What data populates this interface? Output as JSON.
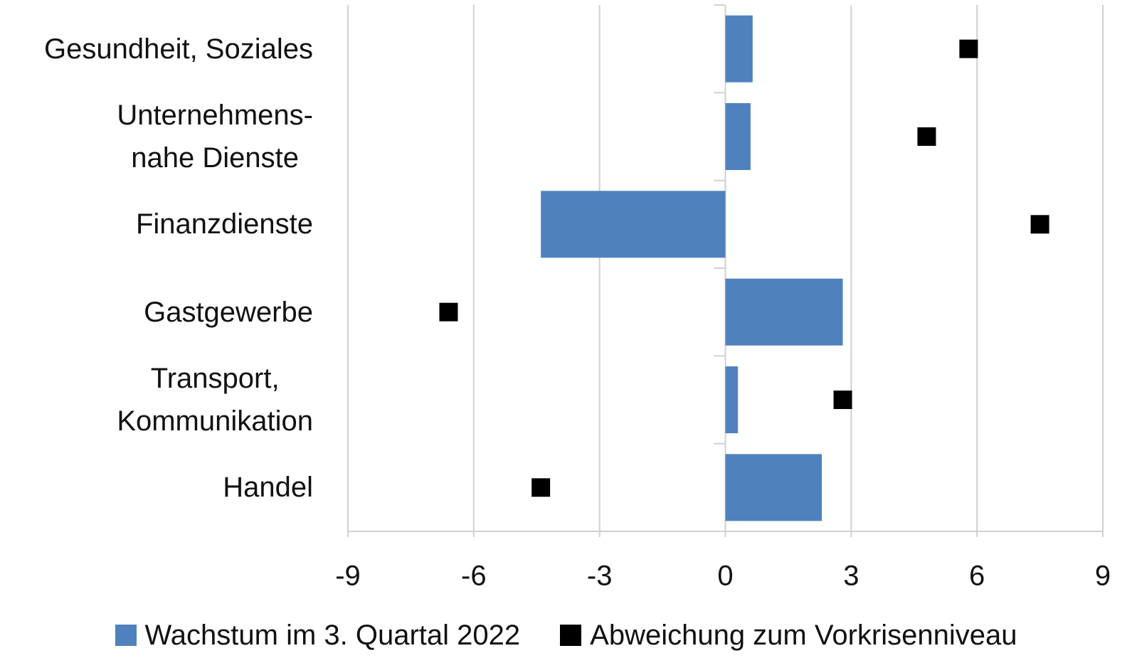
{
  "chart_data": {
    "type": "bar",
    "orientation": "horizontal",
    "categories": [
      "Gesundheit, Soziales",
      "Unternehmens-\nnahe Dienste",
      "Finanzdienste",
      "Gastgewerbe",
      "Transport,\nKommunikation",
      "Handel"
    ],
    "series": [
      {
        "name": "Wachstum im 3. Quartal 2022",
        "type": "bar",
        "color": "#4f81bd",
        "values": [
          0.65,
          0.6,
          -4.4,
          2.8,
          0.3,
          2.3
        ]
      },
      {
        "name": "Abweichung zum Vorkrisenniveau",
        "type": "scatter",
        "color": "#000000",
        "values": [
          5.8,
          4.8,
          7.5,
          -6.6,
          2.8,
          -4.4
        ]
      }
    ],
    "xlim": [
      -9,
      9
    ],
    "xticks": [
      -9,
      -6,
      -3,
      0,
      3,
      6,
      9
    ],
    "grid": true,
    "legend": "bottom"
  }
}
